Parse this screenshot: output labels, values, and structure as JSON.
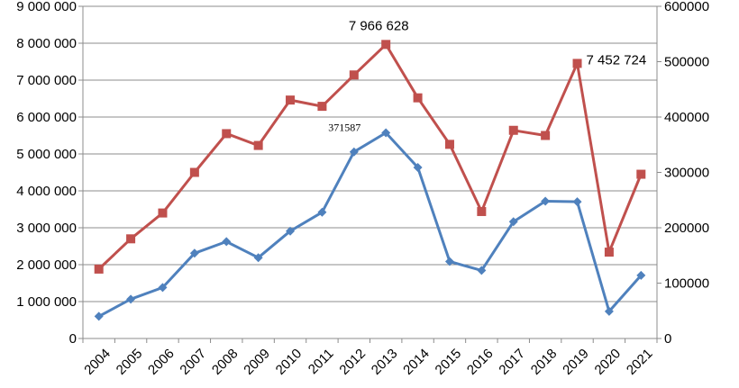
{
  "chart_data": {
    "type": "line",
    "x": [
      "2004",
      "2005",
      "2006",
      "2007",
      "2008",
      "2009",
      "2010",
      "2011",
      "2012",
      "2013",
      "2014",
      "2015",
      "2016",
      "2017",
      "2018",
      "2019",
      "2020",
      "2021"
    ],
    "series": [
      {
        "axis": "left",
        "color": "#c0504d",
        "marker": "square",
        "values": [
          1880000,
          2700000,
          3400000,
          4500000,
          5550000,
          5230000,
          6460000,
          6290000,
          7140000,
          7966628,
          6520000,
          5260000,
          3440000,
          5640000,
          5500000,
          7452724,
          2340000,
          4450000
        ]
      },
      {
        "axis": "right",
        "color": "#4f81bd",
        "marker": "diamond",
        "values": [
          40000,
          71000,
          92000,
          154000,
          175000,
          146000,
          194000,
          228000,
          337000,
          371587,
          309000,
          139000,
          123000,
          211000,
          248000,
          247000,
          49000,
          114000
        ]
      }
    ],
    "annotations": [
      {
        "series": 0,
        "index": 9,
        "text": "7 966 628"
      },
      {
        "series": 0,
        "index": 15,
        "text": "7 452 724"
      },
      {
        "series": 1,
        "index": 9,
        "text": "371587"
      }
    ],
    "left_axis": {
      "ylim": [
        0,
        9000000
      ],
      "ticks": [
        0,
        1000000,
        2000000,
        3000000,
        4000000,
        5000000,
        6000000,
        7000000,
        8000000,
        9000000
      ],
      "tick_labels": [
        "0",
        "1 000 000",
        "2 000 000",
        "3 000 000",
        "4 000 000",
        "5 000 000",
        "6 000 000",
        "7 000 000",
        "8 000 000",
        "9 000 000"
      ]
    },
    "right_axis": {
      "ylim": [
        0,
        600000
      ],
      "ticks": [
        0,
        100000,
        200000,
        300000,
        400000,
        500000,
        600000
      ],
      "tick_labels": [
        "0",
        "100000",
        "200000",
        "300000",
        "400000",
        "500000",
        "600000"
      ]
    },
    "grid": true,
    "legend": "none",
    "title": "",
    "xlabel": "",
    "ylabel": ""
  }
}
